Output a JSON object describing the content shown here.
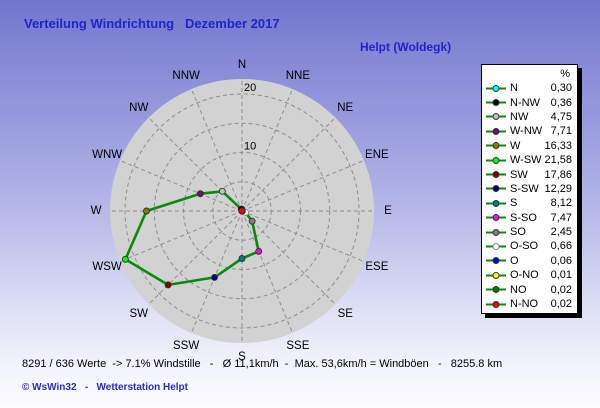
{
  "header": {
    "title": "Verteilung Windrichtung   Dezember 2017",
    "station": "Helpt (Woldegk)"
  },
  "legend": {
    "header_unit": "%"
  },
  "footer": {
    "stats": "8291 / 636 Werte  -> 7.1% Windstille   -   Ø 11,1km/h  -  Max. 53,6km/h = Windböen   -   8255.8 km",
    "copyright": "© WsWin32   -   Wetterstation Helpt"
  },
  "colors": {
    "title_blue": "#2323cd",
    "disk_gray": "#d2d2d2",
    "grid_gray": "#8e8e8e",
    "line_green": "#0a8a0a",
    "background_top": "#7176cd",
    "background_bottom": "#fdfdff"
  },
  "chart_data": {
    "type": "line",
    "variant": "windrose-polar",
    "title": "Verteilung Windrichtung Dezember 2017",
    "units": "%",
    "grid": "dashed",
    "rings": [
      5,
      10,
      15,
      20
    ],
    "ring_labels": [
      "10",
      "20"
    ],
    "r_max": 22.5,
    "compass_order": [
      "N",
      "NNE",
      "NE",
      "ENE",
      "E",
      "ESE",
      "SE",
      "SSE",
      "S",
      "SSW",
      "SW",
      "WSW",
      "W",
      "WNW",
      "NW",
      "NNW"
    ],
    "points": [
      {
        "legend_label": "N",
        "compass": "N",
        "value": 0.3,
        "value_text": "0,30",
        "color": "#00ffff"
      },
      {
        "legend_label": "N-NW",
        "compass": "NNW",
        "value": 0.36,
        "value_text": "0,36",
        "color": "#000000"
      },
      {
        "legend_label": "NW",
        "compass": "NW",
        "value": 4.75,
        "value_text": "4,75",
        "color": "#c0c0c0"
      },
      {
        "legend_label": "W-NW",
        "compass": "WNW",
        "value": 7.71,
        "value_text": "7,71",
        "color": "#800080"
      },
      {
        "legend_label": "W",
        "compass": "W",
        "value": 16.33,
        "value_text": "16,33",
        "color": "#808000"
      },
      {
        "legend_label": "W-SW",
        "compass": "WSW",
        "value": 21.58,
        "value_text": "21,58",
        "color": "#00ff00"
      },
      {
        "legend_label": "SW",
        "compass": "SW",
        "value": 17.86,
        "value_text": "17,86",
        "color": "#800000"
      },
      {
        "legend_label": "S-SW",
        "compass": "SSW",
        "value": 12.29,
        "value_text": "12,29",
        "color": "#000080"
      },
      {
        "legend_label": "S",
        "compass": "S",
        "value": 8.12,
        "value_text": "8,12",
        "color": "#008080"
      },
      {
        "legend_label": "S-SO",
        "compass": "SSE",
        "value": 7.47,
        "value_text": "7,47",
        "color": "#ff00ff"
      },
      {
        "legend_label": "SO",
        "compass": "SE",
        "value": 2.45,
        "value_text": "2,45",
        "color": "#808080"
      },
      {
        "legend_label": "O-SO",
        "compass": "ESE",
        "value": 0.66,
        "value_text": "0,66",
        "color": "#ffffff"
      },
      {
        "legend_label": "O",
        "compass": "E",
        "value": 0.06,
        "value_text": "0,06",
        "color": "#0000ff"
      },
      {
        "legend_label": "O-NO",
        "compass": "ENE",
        "value": 0.01,
        "value_text": "0,01",
        "color": "#ffff00"
      },
      {
        "legend_label": "NO",
        "compass": "NE",
        "value": 0.02,
        "value_text": "0,02",
        "color": "#008000"
      },
      {
        "legend_label": "N-NO",
        "compass": "NNE",
        "value": 0.02,
        "value_text": "0,02",
        "color": "#ff0000"
      }
    ]
  }
}
